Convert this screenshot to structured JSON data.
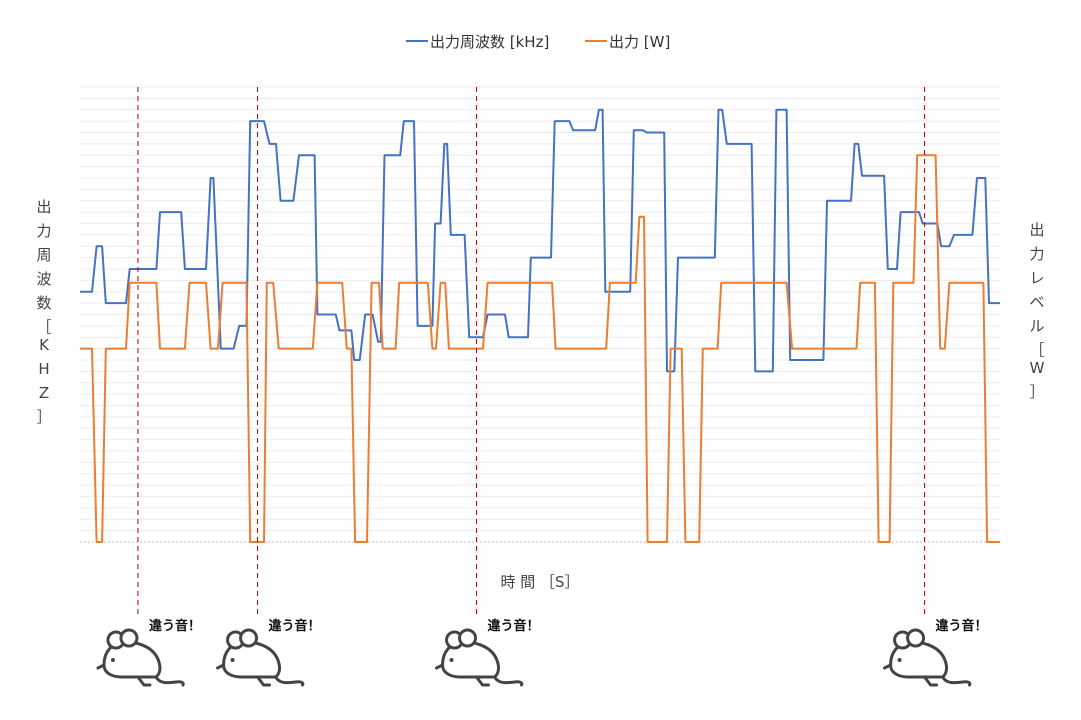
{
  "chart_data": {
    "type": "line",
    "title": "",
    "xlabel": "時 間 ［S］",
    "ylabel_left": "出力周波数［KHZ］",
    "ylabel_right": "出力レベル［W］",
    "legend_position": "top-center",
    "grid": true,
    "axis_ticks_labeled": false,
    "x_range": [
      0,
      100
    ],
    "y_range": [
      0,
      100
    ],
    "y_note": "Relative values (0–100 scale); neither axis prints tick labels.",
    "series": [
      {
        "name": "出力周波数 [kHz]",
        "color": "#4472C4",
        "axis": "left",
        "points": [
          [
            0,
            55
          ],
          [
            1.3,
            55
          ],
          [
            1.8,
            65
          ],
          [
            2.4,
            65
          ],
          [
            2.8,
            52.5
          ],
          [
            5,
            52.5
          ],
          [
            5.4,
            60
          ],
          [
            8.3,
            60
          ],
          [
            8.7,
            72.5
          ],
          [
            11,
            72.5
          ],
          [
            11.4,
            60
          ],
          [
            13.7,
            60
          ],
          [
            14.2,
            80
          ],
          [
            14.5,
            80
          ],
          [
            15.3,
            42.5
          ],
          [
            16.7,
            42.5
          ],
          [
            17.3,
            47.5
          ],
          [
            18.1,
            47.5
          ],
          [
            18.5,
            92.5
          ],
          [
            20,
            92.5
          ],
          [
            20.6,
            87.5
          ],
          [
            21.3,
            87.5
          ],
          [
            21.8,
            75
          ],
          [
            23.2,
            75
          ],
          [
            23.8,
            85
          ],
          [
            25.5,
            85
          ],
          [
            25.8,
            50
          ],
          [
            27.8,
            50
          ],
          [
            28.2,
            46.5
          ],
          [
            29.5,
            46.5
          ],
          [
            29.8,
            40
          ],
          [
            30.4,
            40
          ],
          [
            31,
            50
          ],
          [
            31.8,
            50
          ],
          [
            32.4,
            44
          ],
          [
            32.7,
            44
          ],
          [
            33.1,
            85
          ],
          [
            34.8,
            85
          ],
          [
            35.2,
            92.5
          ],
          [
            36.3,
            92.5
          ],
          [
            36.7,
            47.5
          ],
          [
            38.3,
            47.5
          ],
          [
            38.6,
            70
          ],
          [
            39.2,
            70
          ],
          [
            39.6,
            87.5
          ],
          [
            39.9,
            87.5
          ],
          [
            40.3,
            67.5
          ],
          [
            41.8,
            67.5
          ],
          [
            42.3,
            45
          ],
          [
            43.8,
            45
          ],
          [
            44.3,
            50
          ],
          [
            46.2,
            50
          ],
          [
            46.6,
            45
          ],
          [
            48.7,
            45
          ],
          [
            49,
            62.5
          ],
          [
            51.2,
            62.5
          ],
          [
            51.6,
            92.5
          ],
          [
            53.2,
            92.5
          ],
          [
            53.6,
            90.5
          ],
          [
            56,
            90.5
          ],
          [
            56.4,
            95
          ],
          [
            56.8,
            95
          ],
          [
            57.1,
            55
          ],
          [
            59.8,
            55
          ],
          [
            60.2,
            90.5
          ],
          [
            61.2,
            90.5
          ],
          [
            61.6,
            90
          ],
          [
            63.5,
            90
          ],
          [
            63.8,
            37.5
          ],
          [
            64.6,
            37.5
          ],
          [
            65,
            62.5
          ],
          [
            69,
            62.5
          ],
          [
            69.4,
            95
          ],
          [
            69.8,
            95
          ],
          [
            70.3,
            87.5
          ],
          [
            73,
            87.5
          ],
          [
            73.4,
            37.5
          ],
          [
            75.3,
            37.5
          ],
          [
            75.7,
            95
          ],
          [
            76.8,
            95
          ],
          [
            77.2,
            40
          ],
          [
            80.8,
            40
          ],
          [
            81.2,
            75
          ],
          [
            83.8,
            75
          ],
          [
            84.2,
            87.5
          ],
          [
            84.6,
            87.5
          ],
          [
            85,
            80.5
          ],
          [
            87.4,
            80.5
          ],
          [
            87.8,
            60
          ],
          [
            88.8,
            60
          ],
          [
            89.2,
            72.5
          ],
          [
            91.2,
            72.5
          ],
          [
            91.6,
            70
          ],
          [
            93.2,
            70
          ],
          [
            93.6,
            65
          ],
          [
            94.5,
            65
          ],
          [
            95,
            67.5
          ],
          [
            97,
            67.5
          ],
          [
            97.5,
            80
          ],
          [
            98.4,
            80
          ],
          [
            98.8,
            52.5
          ],
          [
            100,
            52.5
          ]
        ]
      },
      {
        "name": "出力 [W]",
        "color": "#ED7D31",
        "axis": "right",
        "points": [
          [
            0,
            42.5
          ],
          [
            1.3,
            42.5
          ],
          [
            1.8,
            0
          ],
          [
            2.4,
            0
          ],
          [
            2.8,
            42.5
          ],
          [
            5,
            42.5
          ],
          [
            5.4,
            57
          ],
          [
            8.3,
            57
          ],
          [
            8.7,
            42.5
          ],
          [
            11.4,
            42.5
          ],
          [
            11.9,
            57
          ],
          [
            13.7,
            57
          ],
          [
            14.2,
            42.5
          ],
          [
            15,
            42.5
          ],
          [
            15.5,
            57
          ],
          [
            18.1,
            57
          ],
          [
            18.5,
            0
          ],
          [
            20,
            0
          ],
          [
            20.3,
            57
          ],
          [
            21,
            57
          ],
          [
            21.6,
            42.5
          ],
          [
            25.3,
            42.5
          ],
          [
            25.8,
            57
          ],
          [
            28.5,
            57
          ],
          [
            29,
            42.5
          ],
          [
            29.5,
            42.5
          ],
          [
            29.9,
            0
          ],
          [
            31.2,
            0
          ],
          [
            31.7,
            57
          ],
          [
            32.5,
            57
          ],
          [
            32.9,
            42.5
          ],
          [
            34.3,
            42.5
          ],
          [
            34.7,
            57
          ],
          [
            37.8,
            57
          ],
          [
            38.3,
            42.5
          ],
          [
            38.7,
            42.5
          ],
          [
            39.2,
            57
          ],
          [
            39.7,
            57
          ],
          [
            40.1,
            42.5
          ],
          [
            43.8,
            42.5
          ],
          [
            44.3,
            57
          ],
          [
            51.3,
            57
          ],
          [
            51.7,
            42.5
          ],
          [
            57.2,
            42.5
          ],
          [
            57.6,
            57
          ],
          [
            60.4,
            57
          ],
          [
            60.8,
            71.5
          ],
          [
            61.3,
            71.5
          ],
          [
            61.7,
            0
          ],
          [
            63.8,
            0
          ],
          [
            64.2,
            42.5
          ],
          [
            65.4,
            42.5
          ],
          [
            65.8,
            0
          ],
          [
            67.3,
            0
          ],
          [
            67.7,
            42.5
          ],
          [
            69.3,
            42.5
          ],
          [
            69.7,
            57
          ],
          [
            72.7,
            57
          ],
          [
            73.1,
            57
          ],
          [
            76.5,
            57
          ],
          [
            76.8,
            57
          ],
          [
            77.4,
            42.5
          ],
          [
            84.4,
            42.5
          ],
          [
            84.8,
            57
          ],
          [
            86.4,
            57
          ],
          [
            86.8,
            0
          ],
          [
            88,
            0
          ],
          [
            88.4,
            57
          ],
          [
            90.6,
            57
          ],
          [
            91,
            85
          ],
          [
            93,
            85
          ],
          [
            93.5,
            42.5
          ],
          [
            94,
            42.5
          ],
          [
            94.5,
            57
          ],
          [
            98.2,
            57
          ],
          [
            98.6,
            0
          ],
          [
            100,
            0
          ]
        ]
      }
    ],
    "annotations": [
      {
        "x": 6.3,
        "text": "違う音！"
      },
      {
        "x": 19.3,
        "text": "違う音！"
      },
      {
        "x": 43.1,
        "text": "違う音！"
      },
      {
        "x": 91.8,
        "text": "違う音！"
      }
    ]
  }
}
